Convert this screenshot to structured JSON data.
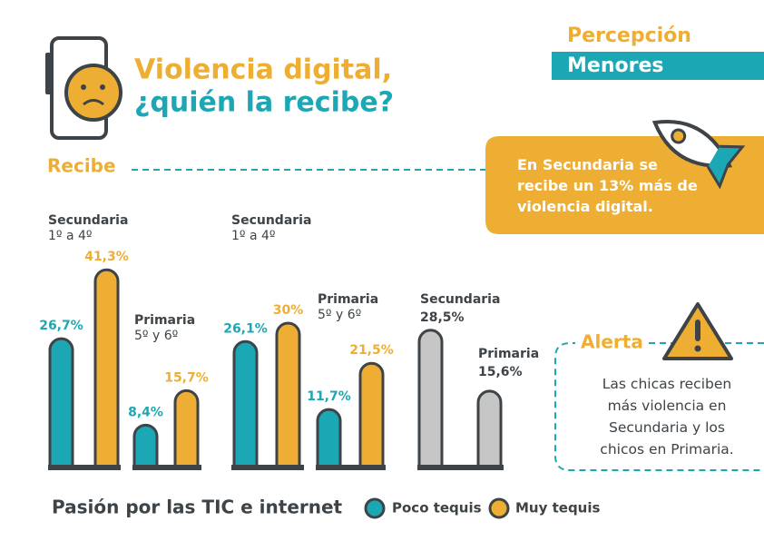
{
  "header": {
    "category": "Percepción",
    "tag": "Menores",
    "title_line1": "Violencia digital,",
    "title_line2": "¿quién la recibe?"
  },
  "section_label": "Recibe",
  "callout": "En Secundaria se recibe un 13% más de violencia digital.",
  "groups": [
    {
      "bars": [
        {
          "label": "Secundaria",
          "sublabel": "1º a 4º",
          "values": [
            26.7,
            41.3
          ],
          "value_labels": [
            "26,7%",
            "41,3%"
          ]
        },
        {
          "label": "Primaria",
          "sublabel": "5º y 6º",
          "values": [
            8.4,
            15.7
          ],
          "value_labels": [
            "8,4%",
            "15,7%"
          ]
        }
      ]
    },
    {
      "bars": [
        {
          "label": "Secundaria",
          "sublabel": "1º a 4º",
          "values": [
            26.1,
            30
          ],
          "value_labels": [
            "26,1%",
            "30%"
          ]
        },
        {
          "label": "Primaria",
          "sublabel": "5º y 6º",
          "values": [
            11.7,
            21.5
          ],
          "value_labels": [
            "11,7%",
            "21,5%"
          ]
        }
      ]
    },
    {
      "bars": [
        {
          "label": "Secundaria",
          "values": [
            28.5
          ],
          "value_labels": [
            "28,5%"
          ]
        },
        {
          "label": "Primaria",
          "values": [
            15.6
          ],
          "value_labels": [
            "15,6%"
          ]
        }
      ]
    }
  ],
  "gray_color": "#c6c6c6",
  "alert": {
    "title": "Alerta",
    "text": "Las chicas reciben más violencia en Secundaria y los chicos en Primaria."
  },
  "legend": {
    "title": "Pasión por las TIC e internet",
    "series": [
      {
        "name": "Poco tequis",
        "color": "#1ba8b4"
      },
      {
        "name": "Muy tequis",
        "color": "#eeae33"
      }
    ]
  }
}
